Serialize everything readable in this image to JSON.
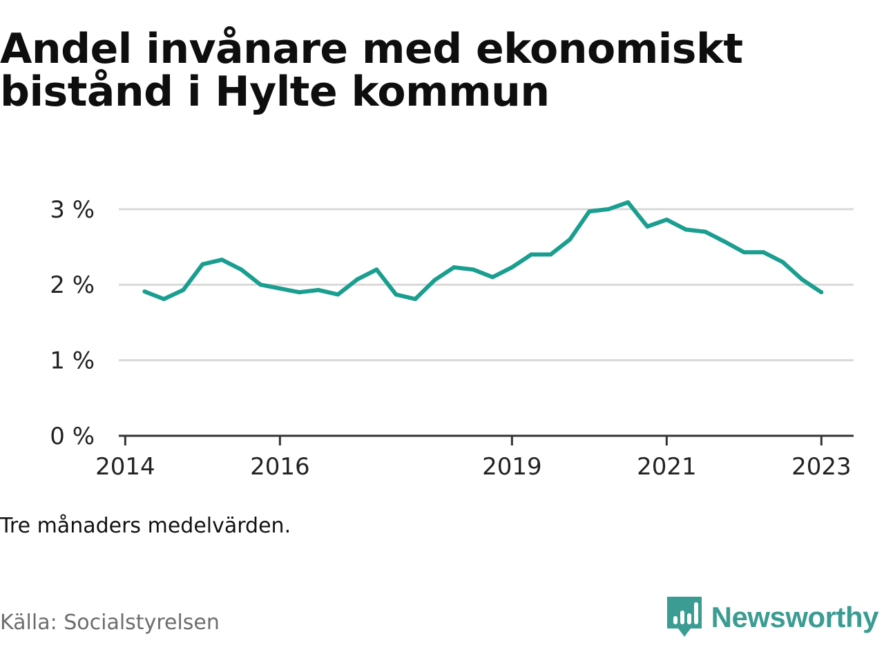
{
  "title": {
    "line1": "Andel invånare med ekonomiskt",
    "line2": "bistånd i Hylte kommun"
  },
  "note": "Tre månaders medelvärden.",
  "source": "Källa: Socialstyrelsen",
  "brand": {
    "name": "Newsworthy",
    "icon": "newsworthy-bar-chart-logo-icon",
    "color": "#3a9c92"
  },
  "colors": {
    "line": "#1a9e8f",
    "grid": "#d9d9d9",
    "axis": "#333333"
  },
  "chart_data": {
    "type": "line",
    "title": "Andel invånare med ekonomiskt bistånd i Hylte kommun",
    "xlabel": "",
    "ylabel": "",
    "ylim": [
      0,
      3.3
    ],
    "xlim": [
      "2013-12",
      "2023-06"
    ],
    "grid": true,
    "y_ticks": [
      {
        "value": 0,
        "label": "0 %"
      },
      {
        "value": 1,
        "label": "1 %"
      },
      {
        "value": 2,
        "label": "2 %"
      },
      {
        "value": 3,
        "label": "3 %"
      }
    ],
    "x_ticks": [
      {
        "value": "2014-01",
        "label": "2014"
      },
      {
        "value": "2016-01",
        "label": "2016"
      },
      {
        "value": "2019-01",
        "label": "2019"
      },
      {
        "value": "2021-01",
        "label": "2021"
      },
      {
        "value": "2023-01",
        "label": "2023"
      }
    ],
    "series": [
      {
        "values": [
          {
            "x": "2014-04",
            "y": 1.91
          },
          {
            "x": "2014-07",
            "y": 1.81
          },
          {
            "x": "2014-10",
            "y": 1.93
          },
          {
            "x": "2015-01",
            "y": 2.27
          },
          {
            "x": "2015-04",
            "y": 2.33
          },
          {
            "x": "2015-07",
            "y": 2.2
          },
          {
            "x": "2015-10",
            "y": 2.0
          },
          {
            "x": "2016-01",
            "y": 1.95
          },
          {
            "x": "2016-04",
            "y": 1.9
          },
          {
            "x": "2016-07",
            "y": 1.93
          },
          {
            "x": "2016-10",
            "y": 1.87
          },
          {
            "x": "2017-01",
            "y": 2.07
          },
          {
            "x": "2017-04",
            "y": 2.2
          },
          {
            "x": "2017-07",
            "y": 1.87
          },
          {
            "x": "2017-10",
            "y": 1.81
          },
          {
            "x": "2018-01",
            "y": 2.06
          },
          {
            "x": "2018-04",
            "y": 2.23
          },
          {
            "x": "2018-07",
            "y": 2.2
          },
          {
            "x": "2018-10",
            "y": 2.1
          },
          {
            "x": "2019-01",
            "y": 2.23
          },
          {
            "x": "2019-04",
            "y": 2.4
          },
          {
            "x": "2019-07",
            "y": 2.4
          },
          {
            "x": "2019-10",
            "y": 2.6
          },
          {
            "x": "2020-01",
            "y": 2.97
          },
          {
            "x": "2020-04",
            "y": 3.0
          },
          {
            "x": "2020-07",
            "y": 3.09
          },
          {
            "x": "2020-10",
            "y": 2.77
          },
          {
            "x": "2021-01",
            "y": 2.86
          },
          {
            "x": "2021-04",
            "y": 2.73
          },
          {
            "x": "2021-07",
            "y": 2.7
          },
          {
            "x": "2021-10",
            "y": 2.57
          },
          {
            "x": "2022-01",
            "y": 2.43
          },
          {
            "x": "2022-04",
            "y": 2.43
          },
          {
            "x": "2022-07",
            "y": 2.3
          },
          {
            "x": "2022-10",
            "y": 2.07
          },
          {
            "x": "2023-01",
            "y": 1.9
          }
        ]
      }
    ]
  }
}
